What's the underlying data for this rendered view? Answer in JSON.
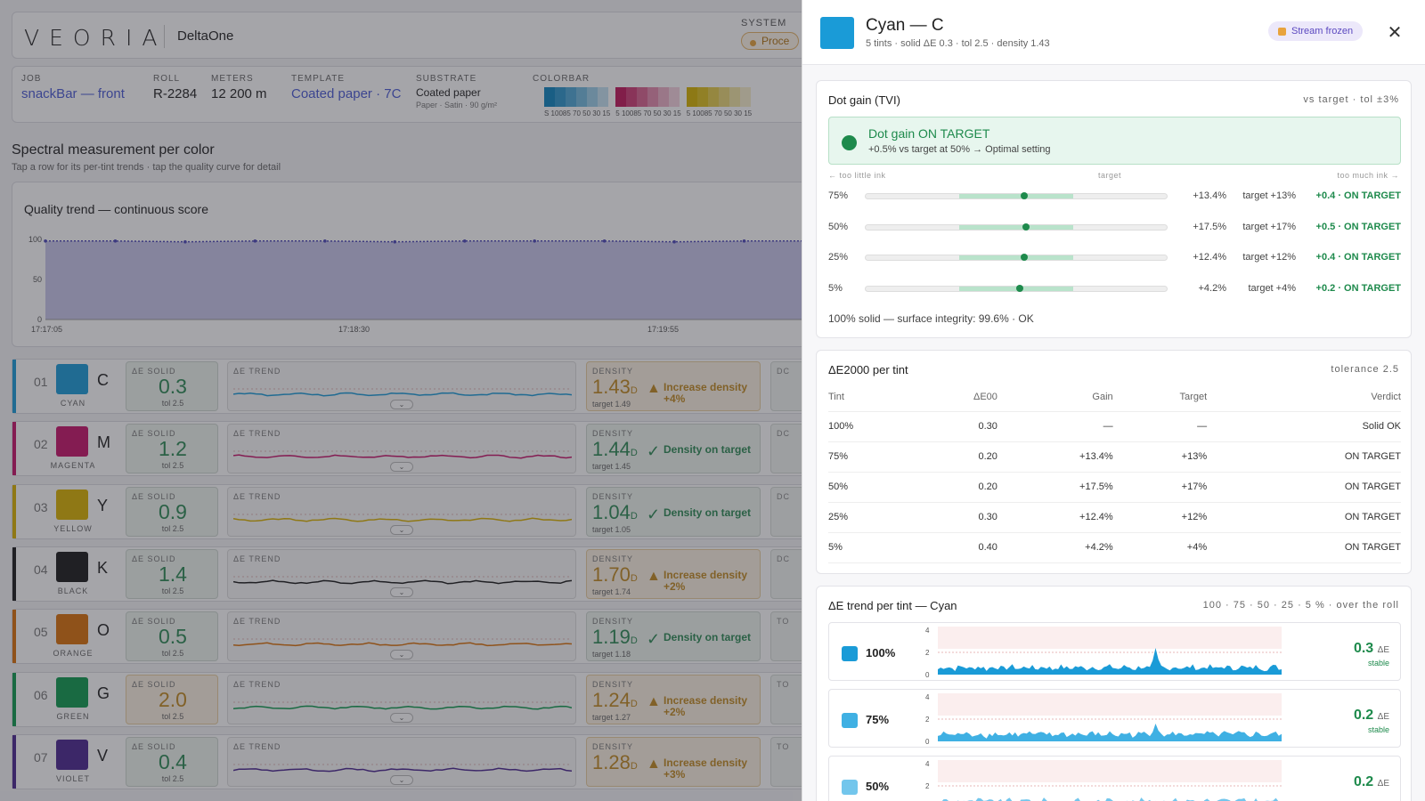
{
  "app": {
    "logo": "VEORIA",
    "brand": "DeltaOne",
    "system_label": "SYSTEM",
    "system_status": "Proce"
  },
  "job": {
    "job_label": "JOB",
    "job": "snackBar — front",
    "roll_label": "ROLL",
    "roll": "R-2284",
    "meters_label": "METERS",
    "meters": "12 200 m",
    "template_label": "TEMPLATE",
    "template": "Coated paper · 7C",
    "substrate_label": "SUBSTRATE",
    "substrate": "Coated paper",
    "substrate_sub": "Paper · Satin · 90 g/m²",
    "colorbar_label": "COLORBAR",
    "colorbar": [
      {
        "colors": [
          "#0f86c0",
          "#2d96cc",
          "#4ea8d6",
          "#73badf",
          "#9ccfe9",
          "#c4e2f2"
        ],
        "label": "S 10085 70 50 30 15"
      },
      {
        "colors": [
          "#c2185b",
          "#cf3d75",
          "#d9628f",
          "#e38aac",
          "#ecb0c7",
          "#f4d2df"
        ],
        "label": "5 10085 70 50 30 15"
      },
      {
        "colors": [
          "#d6b400",
          "#dcc01e",
          "#e3cb4a",
          "#e9d676",
          "#f0e3a3",
          "#f6eecb"
        ],
        "label": "5 10085 70 50 30 15"
      }
    ]
  },
  "spectral": {
    "title": "Spectral measurement per color",
    "subtitle": "Tap a row for its per-tint trends · tap the quality curve for detail"
  },
  "quality": {
    "title": "Quality trend — continuous score"
  },
  "chart_data": {
    "type": "area",
    "title": "Quality trend — continuous score",
    "yticks": [
      "100",
      "50",
      "0"
    ],
    "ylim": [
      0,
      100
    ],
    "xticks": [
      "17:17:05",
      "17:18:30",
      "17:19:55"
    ],
    "series": [
      {
        "values": [
          98,
          98,
          97,
          98,
          98,
          97,
          98,
          98,
          98,
          97,
          98,
          98
        ]
      }
    ]
  },
  "rows": [
    {
      "num": "01",
      "letter": "C",
      "name": "CYAN",
      "color": "#1a9bd7",
      "de_label": "ΔE SOLID",
      "de": "0.3",
      "tol": "tol 2.5",
      "warn": false,
      "trend_label": "ΔE TREND",
      "dens_label": "DENSITY",
      "density": "1.43",
      "unit": "D",
      "target": "target 1.49",
      "dwarn": true,
      "msg": "Increase density +4%",
      "tail": "DC"
    },
    {
      "num": "02",
      "letter": "M",
      "name": "MAGENTA",
      "color": "#c7136a",
      "de_label": "ΔE SOLID",
      "de": "1.2",
      "tol": "tol 2.5",
      "warn": false,
      "trend_label": "ΔE TREND",
      "dens_label": "DENSITY",
      "density": "1.44",
      "unit": "D",
      "target": "target 1.45",
      "dwarn": false,
      "msg": "Density on target",
      "tail": "DC"
    },
    {
      "num": "03",
      "letter": "Y",
      "name": "YELLOW",
      "color": "#d9b100",
      "de_label": "ΔE SOLID",
      "de": "0.9",
      "tol": "tol 2.5",
      "warn": false,
      "trend_label": "ΔE TREND",
      "dens_label": "DENSITY",
      "density": "1.04",
      "unit": "D",
      "target": "target 1.05",
      "dwarn": false,
      "msg": "Density on target",
      "tail": "DC"
    },
    {
      "num": "04",
      "letter": "K",
      "name": "BLACK",
      "color": "#1b1b1b",
      "de_label": "ΔE SOLID",
      "de": "1.4",
      "tol": "tol 2.5",
      "warn": false,
      "trend_label": "ΔE TREND",
      "dens_label": "DENSITY",
      "density": "1.70",
      "unit": "D",
      "target": "target 1.74",
      "dwarn": true,
      "msg": "Increase density +2%",
      "tail": "DC"
    },
    {
      "num": "05",
      "letter": "O",
      "name": "ORANGE",
      "color": "#d9700a",
      "de_label": "ΔE SOLID",
      "de": "0.5",
      "tol": "tol 2.5",
      "warn": false,
      "trend_label": "ΔE TREND",
      "dens_label": "DENSITY",
      "density": "1.19",
      "unit": "D",
      "target": "target 1.18",
      "dwarn": false,
      "msg": "Density on target",
      "tail": "TO"
    },
    {
      "num": "06",
      "letter": "G",
      "name": "GREEN",
      "color": "#0e9a4f",
      "de_label": "ΔE SOLID",
      "de": "2.0",
      "tol": "tol 2.5",
      "warn": true,
      "trend_label": "ΔE TREND",
      "dens_label": "DENSITY",
      "density": "1.24",
      "unit": "D",
      "target": "target 1.27",
      "dwarn": true,
      "msg": "Increase density +2%",
      "tail": "TO"
    },
    {
      "num": "07",
      "letter": "V",
      "name": "VIOLET",
      "color": "#4b2690",
      "de_label": "ΔE SOLID",
      "de": "0.4",
      "tol": "tol 2.5",
      "warn": false,
      "trend_label": "ΔE TREND",
      "dens_label": "DENSITY",
      "density": "1.28",
      "unit": "D",
      "target": "",
      "dwarn": true,
      "msg": "Increase density +3%",
      "tail": "TO"
    }
  ],
  "panel": {
    "title": "Cyan — C",
    "subtitle": "5 tints · solid ΔE 0.3 · tol 2.5 · density 1.43",
    "stream": "Stream frozen",
    "swatch": "#1a9bd7",
    "dotgain": {
      "title": "Dot gain (TVI)",
      "right": "vs target · tol ±3%",
      "banner_head": "Dot gain ON TARGET",
      "banner_detail": "+0.5% vs target at 50% → Optimal setting",
      "axis_left": "← too little ink",
      "axis_mid": "target",
      "axis_right": "too much ink →",
      "rows": [
        {
          "pct": "75%",
          "meas": "+13.4%",
          "target": "target +13%",
          "verdict": "+0.4 · ON TARGET",
          "dev": 0.4
        },
        {
          "pct": "50%",
          "meas": "+17.5%",
          "target": "target +17%",
          "verdict": "+0.5 · ON TARGET",
          "dev": 0.5
        },
        {
          "pct": "25%",
          "meas": "+12.4%",
          "target": "target +12%",
          "verdict": "+0.4 · ON TARGET",
          "dev": 0.4
        },
        {
          "pct": "5%",
          "meas": "+4.2%",
          "target": "target +4%",
          "verdict": "+0.2 · ON TARGET",
          "dev": 0.2
        }
      ],
      "footer": "100% solid — surface integrity: 99.6% · OK"
    },
    "de_table": {
      "title": "ΔE2000 per tint",
      "right": "tolerance 2.5",
      "headers": [
        "Tint",
        "ΔE00",
        "Gain",
        "Target",
        "Verdict"
      ],
      "rows": [
        [
          "100%",
          "0.30",
          "—",
          "—",
          "Solid OK"
        ],
        [
          "75%",
          "0.20",
          "+13.4%",
          "+13%",
          "ON TARGET"
        ],
        [
          "50%",
          "0.20",
          "+17.5%",
          "+17%",
          "ON TARGET"
        ],
        [
          "25%",
          "0.30",
          "+12.4%",
          "+12%",
          "ON TARGET"
        ],
        [
          "5%",
          "0.40",
          "+4.2%",
          "+4%",
          "ON TARGET"
        ]
      ]
    },
    "trend": {
      "title": "ΔE trend per tint — Cyan",
      "right": "100 · 75 · 50 · 25 · 5 % · over the roll",
      "rows": [
        {
          "label": "100%",
          "value": "0.3",
          "unit": "ΔE",
          "status": "stable",
          "color": "#1a9bd7"
        },
        {
          "label": "75%",
          "value": "0.2",
          "unit": "ΔE",
          "status": "stable",
          "color": "#3fb0e3"
        },
        {
          "label": "50%",
          "value": "0.2",
          "unit": "ΔE",
          "status": "",
          "color": "#73c6ec"
        }
      ],
      "yticks": [
        "4",
        "2",
        "0"
      ]
    }
  }
}
